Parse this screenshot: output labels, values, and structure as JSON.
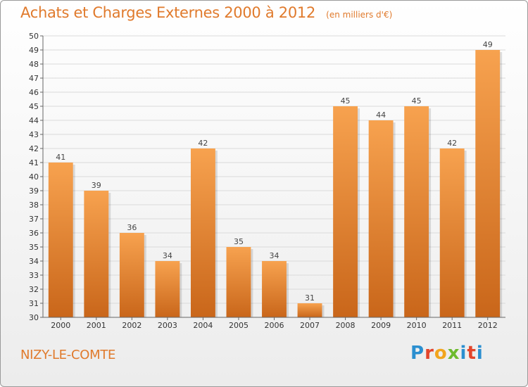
{
  "chart_data": {
    "type": "bar",
    "title": "Achats et Charges Externes 2000 à 2012",
    "unit": "(en milliers d'€)",
    "categories": [
      "2000",
      "2001",
      "2002",
      "2003",
      "2004",
      "2005",
      "2006",
      "2007",
      "2008",
      "2009",
      "2010",
      "2011",
      "2012"
    ],
    "values": [
      41,
      39,
      36,
      34,
      42,
      35,
      34,
      31,
      45,
      44,
      45,
      42,
      49
    ],
    "ylim": [
      30,
      50
    ],
    "yticks": [
      30,
      31,
      32,
      33,
      34,
      35,
      36,
      37,
      38,
      39,
      40,
      41,
      42,
      43,
      44,
      45,
      46,
      47,
      48,
      49,
      50
    ],
    "grid": true,
    "bar_color_top": "#f7a24f",
    "bar_color_bottom": "#c9661a"
  },
  "location": "NIZY-LE-COMTE",
  "brand": {
    "letters": [
      "P",
      "r",
      "o",
      "x",
      "i",
      "t",
      "i"
    ]
  },
  "colors": {
    "accent": "#e07a2c"
  }
}
